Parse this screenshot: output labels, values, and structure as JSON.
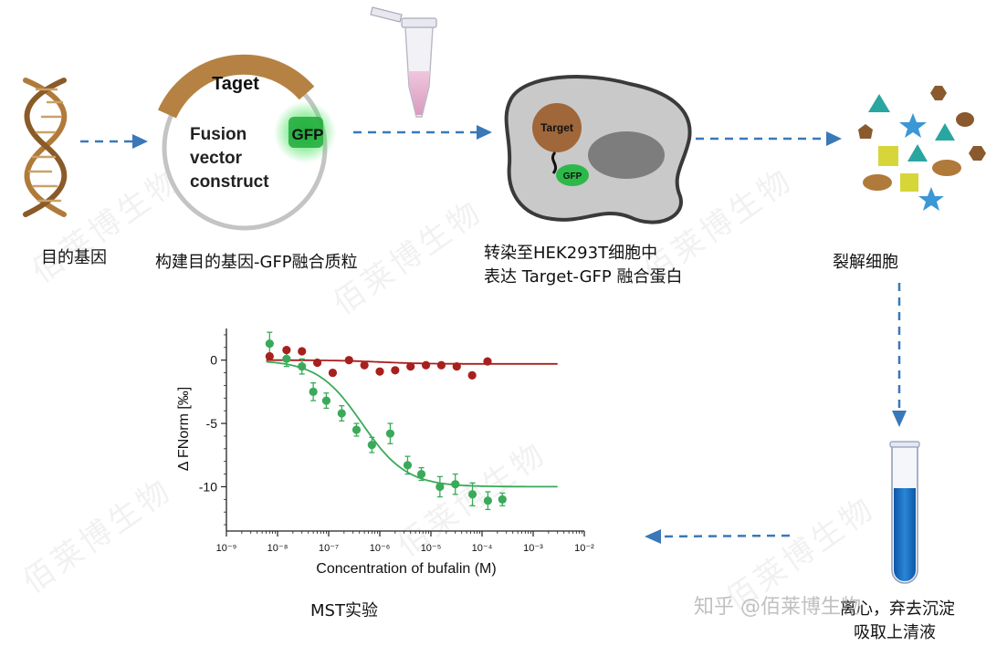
{
  "steps": {
    "gene": {
      "label": "目的基因"
    },
    "plasmid": {
      "label": "构建目的基因-GFP融合质粒",
      "arc_label": "Taget",
      "gfp_label": "GFP",
      "center_line1": "Fusion",
      "center_line2": "vector",
      "center_line3": "construct"
    },
    "transfect": {
      "line1": "转染至HEK293T细胞中",
      "line2": "表达  Target-GFP  融合蛋白",
      "target_label": "Target",
      "gfp_label": "GFP"
    },
    "lyse": {
      "label": "裂解细胞"
    },
    "centrifuge": {
      "line1": "离心，弃去沉淀",
      "line2": "吸取上清液"
    },
    "mst": {
      "label": "MST实验"
    }
  },
  "watermark": {
    "text": "佰莱博生物",
    "credit": "知乎 @佰莱博生物"
  },
  "colors": {
    "arrow": "#3a78b8",
    "dna": "#b07a3a",
    "gfp": "#2db84a",
    "cell": "#c8c8c8",
    "target": "#a0673a",
    "tube_liquid": "#1c6fc4",
    "green_series": "#3aaa5a",
    "red_series": "#a8201e"
  },
  "chart_data": {
    "type": "scatter",
    "xlabel": "Concentration of bufalin (M)",
    "ylabel": "Δ FNorm [‰]",
    "x_scale": "log",
    "xlim": [
      1e-09,
      0.01
    ],
    "ylim": [
      -13.5,
      2.5
    ],
    "xticks": [
      "10⁻⁹",
      "10⁻⁸",
      "10⁻⁷",
      "10⁻⁶",
      "10⁻⁵",
      "10⁻⁴",
      "10⁻³",
      "10⁻²"
    ],
    "yticks": [
      "0",
      "-5",
      "-10"
    ],
    "series": [
      {
        "color": "#3aaa5a",
        "fit": {
          "top": 0.0,
          "bottom": -10.0,
          "ec50": 4.5e-07,
          "hill": 1.0
        },
        "points": [
          {
            "x": 7e-09,
            "y": 1.3,
            "err": 0.9
          },
          {
            "x": 1.5e-08,
            "y": 0.1,
            "err": 0.6
          },
          {
            "x": 3e-08,
            "y": -0.5,
            "err": 0.6
          },
          {
            "x": 5e-08,
            "y": -2.5,
            "err": 0.7
          },
          {
            "x": 9e-08,
            "y": -3.2,
            "err": 0.6
          },
          {
            "x": 1.8e-07,
            "y": -4.2,
            "err": 0.6
          },
          {
            "x": 3.5e-07,
            "y": -5.5,
            "err": 0.5
          },
          {
            "x": 7e-07,
            "y": -6.7,
            "err": 0.6
          },
          {
            "x": 1.6e-06,
            "y": -5.8,
            "err": 0.8
          },
          {
            "x": 3.5e-06,
            "y": -8.3,
            "err": 0.7
          },
          {
            "x": 6.5e-06,
            "y": -9.0,
            "err": 0.5
          },
          {
            "x": 1.5e-05,
            "y": -10.0,
            "err": 0.8
          },
          {
            "x": 3e-05,
            "y": -9.8,
            "err": 0.8
          },
          {
            "x": 6.5e-05,
            "y": -10.6,
            "err": 0.9
          },
          {
            "x": 0.00013,
            "y": -11.1,
            "err": 0.7
          },
          {
            "x": 0.00025,
            "y": -11.0,
            "err": 0.5
          }
        ]
      },
      {
        "color": "#a8201e",
        "fit": {
          "top": 0.0,
          "bottom": -0.3,
          "ec50": 1e-06,
          "hill": 1.0
        },
        "points": [
          {
            "x": 7e-09,
            "y": 0.3
          },
          {
            "x": 1.5e-08,
            "y": 0.8
          },
          {
            "x": 3e-08,
            "y": 0.7
          },
          {
            "x": 6e-08,
            "y": -0.2
          },
          {
            "x": 1.2e-07,
            "y": -1.0
          },
          {
            "x": 2.5e-07,
            "y": 0.0
          },
          {
            "x": 5e-07,
            "y": -0.4
          },
          {
            "x": 1e-06,
            "y": -0.9
          },
          {
            "x": 2e-06,
            "y": -0.8
          },
          {
            "x": 4e-06,
            "y": -0.5
          },
          {
            "x": 8e-06,
            "y": -0.4
          },
          {
            "x": 1.6e-05,
            "y": -0.4
          },
          {
            "x": 3.2e-05,
            "y": -0.5
          },
          {
            "x": 6.4e-05,
            "y": -1.2
          },
          {
            "x": 0.000128,
            "y": -0.1
          }
        ]
      }
    ]
  }
}
